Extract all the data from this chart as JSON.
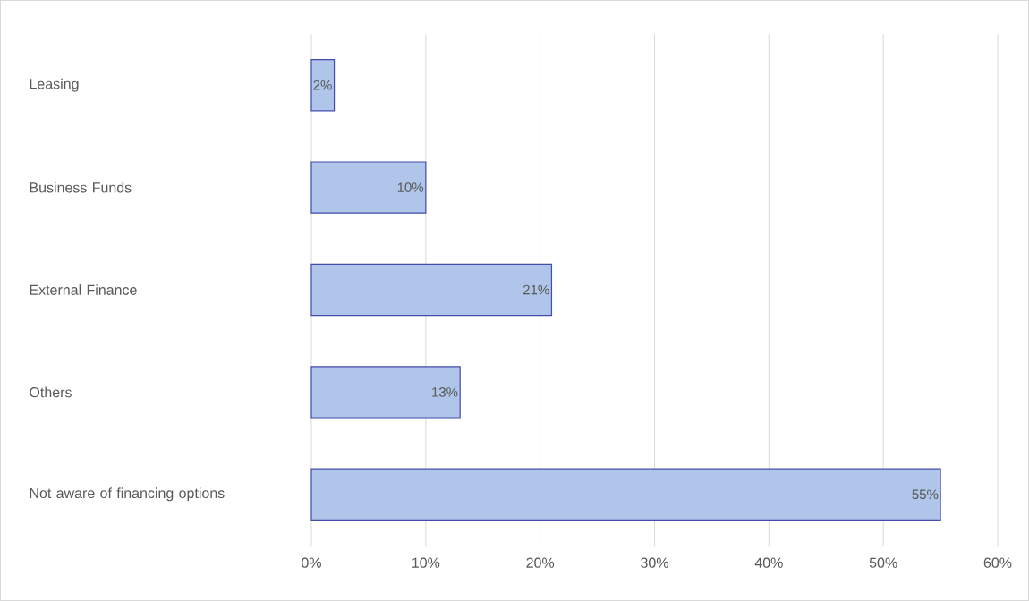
{
  "chart_data": {
    "type": "bar",
    "orientation": "horizontal",
    "categories": [
      "Leasing",
      "Business Funds",
      "External Finance",
      "Others",
      "Not aware of financing options"
    ],
    "values": [
      2,
      10,
      21,
      13,
      55
    ],
    "value_labels": [
      "2%",
      "10%",
      "21%",
      "13%",
      "55%"
    ],
    "color": "#afc5ea",
    "xlim": [
      0,
      60
    ],
    "xticks": [
      {
        "value": 0,
        "label": "0%"
      },
      {
        "value": 10,
        "label": "10%"
      },
      {
        "value": 20,
        "label": "20%"
      },
      {
        "value": 30,
        "label": "30%"
      },
      {
        "value": 40,
        "label": "40%"
      },
      {
        "value": 50,
        "label": "50%"
      },
      {
        "value": 60,
        "label": "60%"
      }
    ],
    "grid": "x"
  }
}
